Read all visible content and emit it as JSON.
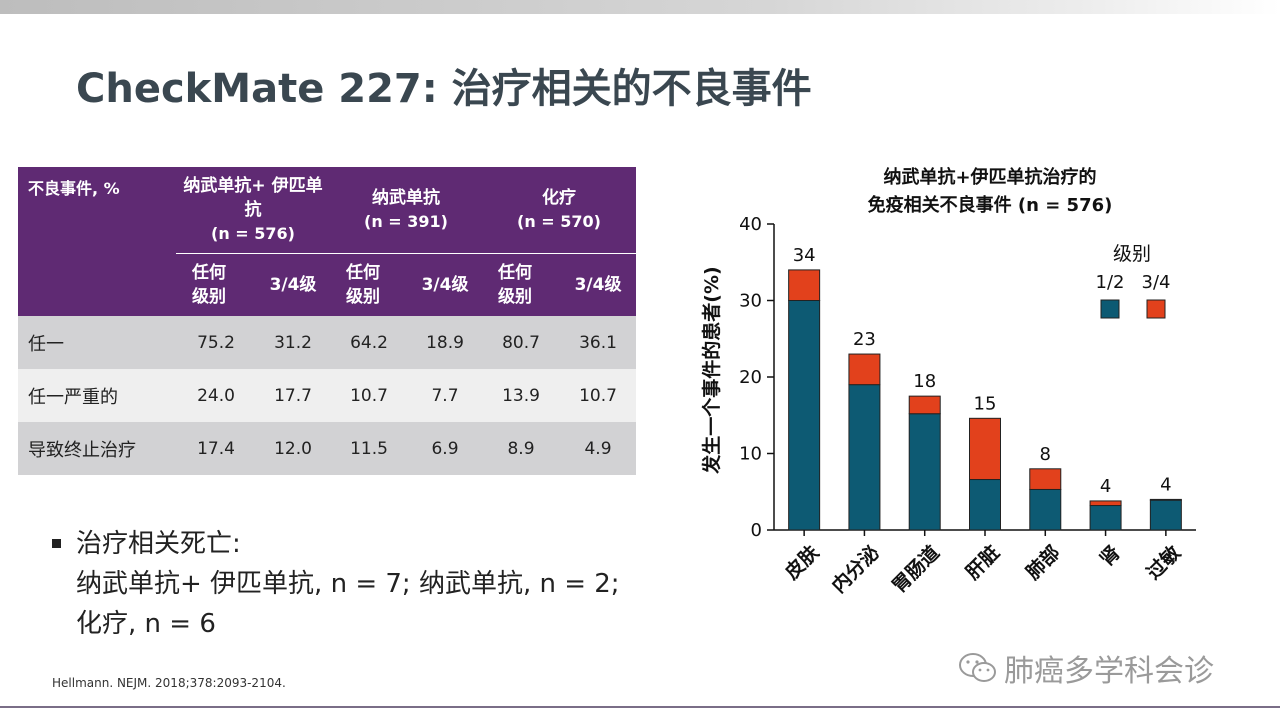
{
  "title": "CheckMate 227: 治疗相关的不良事件",
  "table": {
    "corner": "不良事件, %",
    "groups": [
      {
        "name": "纳武单抗+ 伊匹单抗",
        "n": "(n = 576)"
      },
      {
        "name": "纳武单抗",
        "n": "(n = 391)"
      },
      {
        "name": "化疗",
        "n": "(n = 570)"
      }
    ],
    "sub_any": "任何级别",
    "sub_any_line1": "任何",
    "sub_any_line2": "级别",
    "sub_g34": "3/4级",
    "rows": [
      {
        "label": "任一",
        "values": [
          "75.2",
          "31.2",
          "64.2",
          "18.9",
          "80.7",
          "36.1"
        ]
      },
      {
        "label": "任一严重的",
        "values": [
          "24.0",
          "17.7",
          "10.7",
          "7.7",
          "13.9",
          "10.7"
        ]
      },
      {
        "label": "导致终止治疗",
        "values": [
          "17.4",
          "12.0",
          "11.5",
          "6.9",
          "8.9",
          "4.9"
        ]
      }
    ]
  },
  "bullet": {
    "line1": "治疗相关死亡:",
    "line2": "纳武单抗+ 伊匹单抗, n = 7; 纳武单抗, n = 2;",
    "line3": "化疗, n = 6"
  },
  "citation": "Hellmann. NEJM. 2018;378:2093-2104.",
  "watermark": "肺癌多学科会诊",
  "chart_data": {
    "type": "bar",
    "stacked": true,
    "title_line1": "纳武单抗+伊匹单抗治疗的",
    "title_line2": "免疫相关不良事件 (n = 576)",
    "ylabel": "发生一个事件的患者(%)",
    "ylim": [
      0,
      40
    ],
    "yticks": [
      0,
      10,
      20,
      30,
      40
    ],
    "categories": [
      "皮肤",
      "内分泌",
      "胃肠道",
      "肝脏",
      "肺部",
      "肾",
      "过敏"
    ],
    "series": [
      {
        "name": "1/2",
        "color": "#0d5a73",
        "values": [
          30,
          19,
          15.2,
          6.6,
          5.3,
          3.2,
          3.9
        ]
      },
      {
        "name": "3/4",
        "color": "#e2411c",
        "values": [
          4,
          4,
          2.3,
          8,
          2.7,
          0.6,
          0.1
        ]
      }
    ],
    "totals": [
      "34",
      "23",
      "18",
      "15",
      "8",
      "4",
      "4"
    ],
    "legend_title": "级别",
    "legend_position": "top-right"
  }
}
